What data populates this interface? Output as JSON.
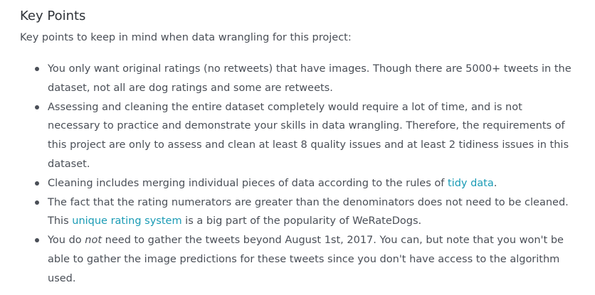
{
  "heading": "Key Points",
  "intro": "Key points to keep in mind when data wrangling for this project:",
  "bullets": [
    {
      "text": "You only want original ratings (no retweets) that have images. Though there are 5000+ tweets in the dataset, not all are dog ratings and some are retweets."
    },
    {
      "text": "Assessing and cleaning the entire dataset completely would require a lot of time, and is not necessary to practice and demonstrate your skills in data wrangling. Therefore, the requirements of this project are only to assess and clean at least 8 quality issues and at least 2 tidiness issues in this dataset."
    },
    {
      "before": "Cleaning includes merging individual pieces of data according to the rules of ",
      "link": "tidy data",
      "after": "."
    },
    {
      "before": "The fact that the rating numerators are greater than the denominators does not need to be cleaned. This ",
      "link": "unique rating system",
      "after": " is a big part of the popularity of WeRateDogs."
    },
    {
      "before": "You do ",
      "emph": "not",
      "after": " need to gather the tweets beyond August 1st, 2017. You can, but note that you won't be able to gather the image predictions for these tweets since you don't have access to the algorithm used."
    }
  ],
  "colors": {
    "text": "#4a4f57",
    "heading": "#2e3238",
    "link": "#1a9bb5"
  }
}
